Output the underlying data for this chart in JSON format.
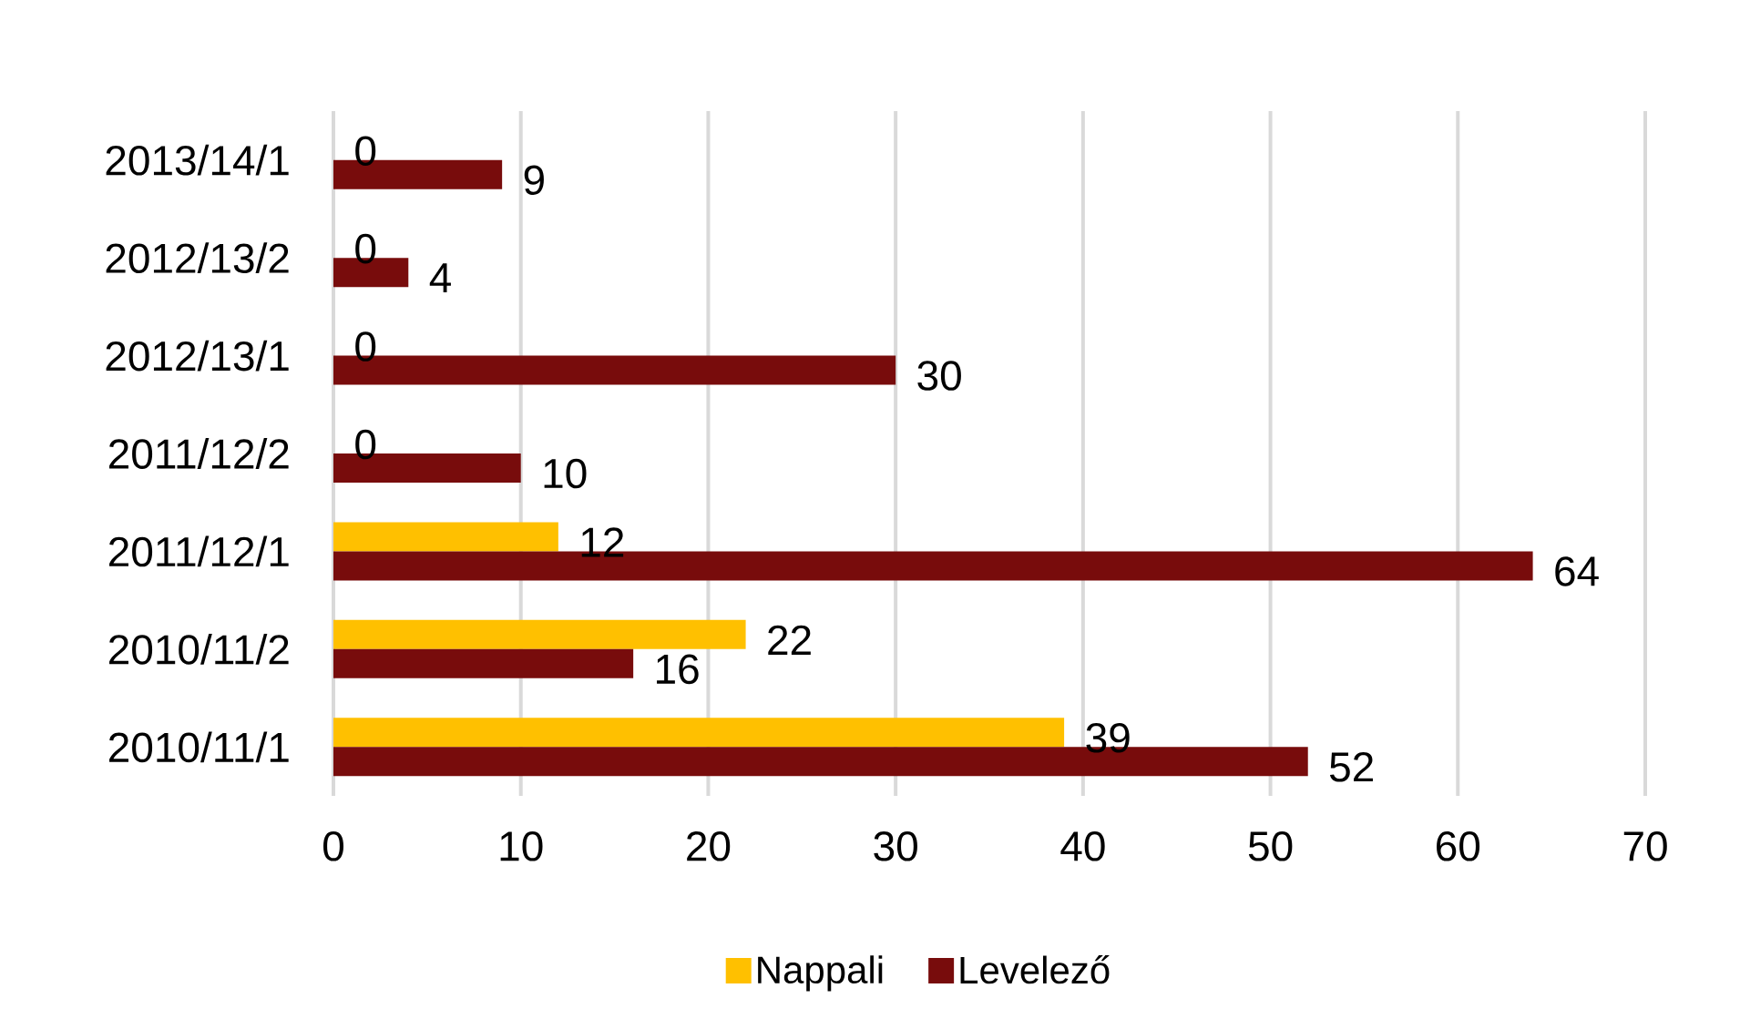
{
  "chart_data": {
    "type": "bar",
    "orientation": "horizontal",
    "categories": [
      "2013/14/1",
      "2012/13/2",
      "2012/13/1",
      "2011/12/2",
      "2011/12/1",
      "2010/11/2",
      "2010/11/1"
    ],
    "series": [
      {
        "name": "Nappali",
        "color": "#ffc000",
        "values": [
          0,
          0,
          0,
          0,
          12,
          22,
          39
        ]
      },
      {
        "name": "Levelező",
        "color": "#780c0c",
        "values": [
          9,
          4,
          30,
          10,
          64,
          16,
          52
        ]
      }
    ],
    "xlim": [
      0,
      70
    ],
    "xticks": [
      0,
      10,
      20,
      30,
      40,
      50,
      60,
      70
    ],
    "grid": "x",
    "legend": "bottom",
    "data_labels": true
  }
}
